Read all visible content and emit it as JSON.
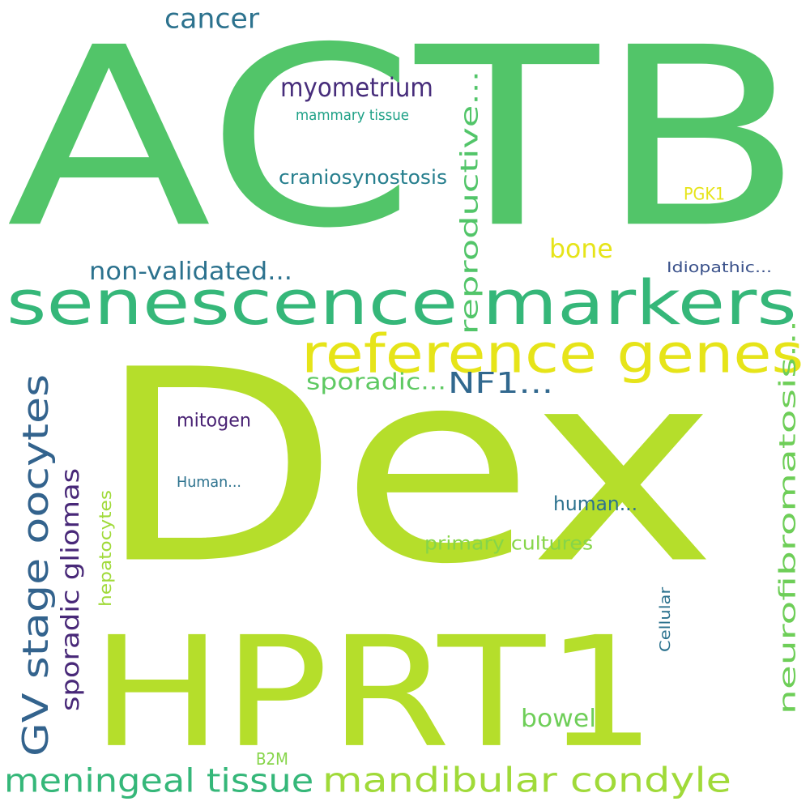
{
  "words": [
    {
      "id": "actb",
      "text": "ACTB",
      "color": "#52c569",
      "orientation": "horizontal"
    },
    {
      "id": "dex",
      "text": "Dex",
      "color": "#b5de2b",
      "orientation": "horizontal"
    },
    {
      "id": "hprt1",
      "text": "HPRT1",
      "color": "#b5de2b",
      "orientation": "horizontal"
    },
    {
      "id": "senescence-markers",
      "text": "senescence markers",
      "color": "#35b779",
      "orientation": "horizontal"
    },
    {
      "id": "reference-genes",
      "text": "reference genes",
      "color": "#e6e419",
      "orientation": "horizontal"
    },
    {
      "id": "gv-stage-oocytes",
      "text": "GV stage oocytes",
      "color": "#33638d",
      "orientation": "vertical"
    },
    {
      "id": "sporadic-gliomas",
      "text": "sporadic gliomas",
      "color": "#482878",
      "orientation": "vertical"
    },
    {
      "id": "reproductive",
      "text": "reproductive...",
      "color": "#52c569",
      "orientation": "vertical"
    },
    {
      "id": "neurofibromatosis",
      "text": "neurofibromatosis...",
      "color": "#6ece58",
      "orientation": "vertical"
    },
    {
      "id": "meningeal-tissue",
      "text": "meningeal tissue",
      "color": "#35b779",
      "orientation": "horizontal"
    },
    {
      "id": "mandibular-condyle",
      "text": "mandibular condyle",
      "color": "#a0da39",
      "orientation": "horizontal"
    },
    {
      "id": "cancer",
      "text": "cancer",
      "color": "#2c728e",
      "orientation": "horizontal"
    },
    {
      "id": "myometrium",
      "text": "myometrium",
      "color": "#472d7b",
      "orientation": "horizontal"
    },
    {
      "id": "mammary-tissue",
      "text": "mammary tissue",
      "color": "#1fa187",
      "orientation": "horizontal"
    },
    {
      "id": "craniosynostosis",
      "text": "craniosynostosis",
      "color": "#277f8e",
      "orientation": "horizontal"
    },
    {
      "id": "pgk1",
      "text": "PGK1",
      "color": "#e6e419",
      "orientation": "horizontal"
    },
    {
      "id": "bone",
      "text": "bone",
      "color": "#e6e419",
      "orientation": "horizontal"
    },
    {
      "id": "non-validated",
      "text": "non-validated...",
      "color": "#2c728e",
      "orientation": "horizontal"
    },
    {
      "id": "idiopathic",
      "text": "Idiopathic...",
      "color": "#3b528b",
      "orientation": "horizontal"
    },
    {
      "id": "sporadic",
      "text": "sporadic...",
      "color": "#5ec962",
      "orientation": "horizontal"
    },
    {
      "id": "nf1",
      "text": "NF1...",
      "color": "#31688e",
      "orientation": "horizontal"
    },
    {
      "id": "mitogen",
      "text": "mitogen",
      "color": "#482173",
      "orientation": "horizontal"
    },
    {
      "id": "human-short",
      "text": "Human...",
      "color": "#2c728e",
      "orientation": "horizontal"
    },
    {
      "id": "human-lower",
      "text": "human...",
      "color": "#2c728e",
      "orientation": "horizontal"
    },
    {
      "id": "hepatocytes",
      "text": "hepatocytes",
      "color": "#a0da39",
      "orientation": "vertical"
    },
    {
      "id": "primary-cultures",
      "text": "primary cultures",
      "color": "#86d549",
      "orientation": "horizontal"
    },
    {
      "id": "cellular",
      "text": "Cellular",
      "color": "#2c728e",
      "orientation": "vertical"
    },
    {
      "id": "bowel",
      "text": "bowel",
      "color": "#6ece58",
      "orientation": "horizontal"
    },
    {
      "id": "b2m",
      "text": "B2M",
      "color": "#86d549",
      "orientation": "horizontal"
    }
  ]
}
